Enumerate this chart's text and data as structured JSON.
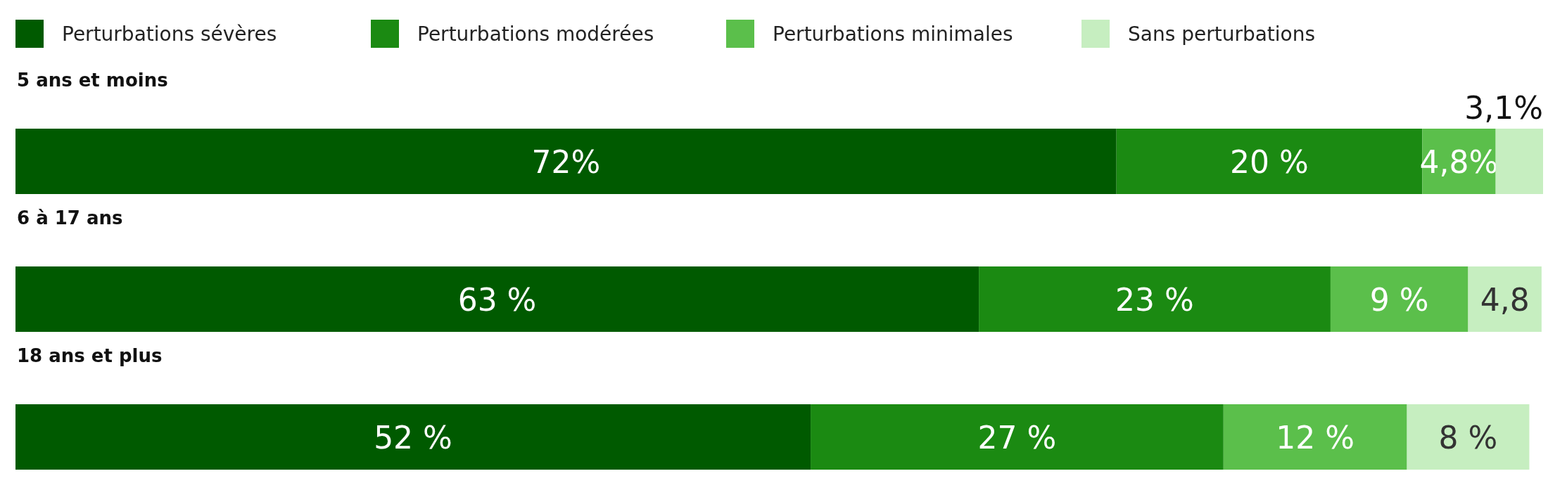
{
  "chart_data": {
    "type": "bar",
    "orientation": "horizontal",
    "stacked": true,
    "legend": "top left",
    "categories": [
      "5 ans et moins",
      "6 à 17 ans",
      "18 ans et plus"
    ],
    "series": [
      {
        "name": "Perturbations sévères",
        "color": "#005a00",
        "values": [
          72,
          63,
          52
        ],
        "value_labels": [
          "72%",
          "63 %",
          "52 %"
        ]
      },
      {
        "name": "Perturbations modérées",
        "color": "#1b8a12",
        "values": [
          20,
          23,
          27
        ],
        "value_labels": [
          "20 %",
          "23 %",
          "27 %"
        ]
      },
      {
        "name": "Perturbations minimales",
        "color": "#5bbf4b",
        "values": [
          4.8,
          9,
          12
        ],
        "value_labels": [
          "4,8%",
          "9 %",
          "12 %"
        ]
      },
      {
        "name": "Sans perturbations",
        "color": "#c6eec0",
        "values": [
          3.1,
          4.8,
          8
        ],
        "value_labels": [
          "3,1%",
          "4,8",
          "8 %"
        ]
      }
    ]
  }
}
